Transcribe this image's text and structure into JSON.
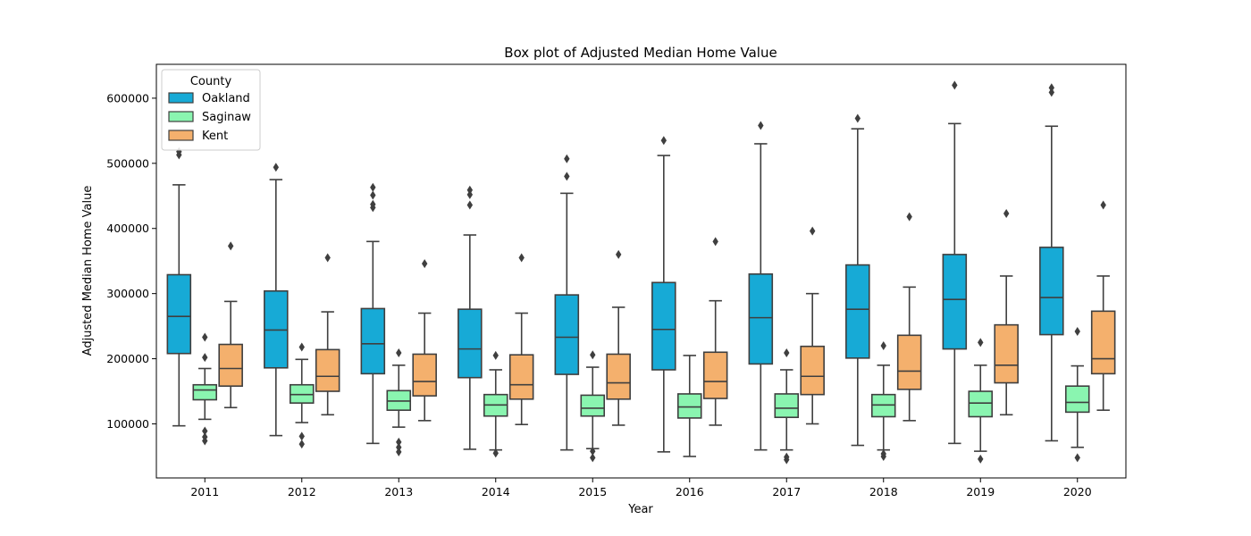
{
  "chart_data": {
    "type": "box",
    "title": "Box plot of Adjusted Median Home Value",
    "xlabel": "Year",
    "ylabel": "Adjusted Median Home Value",
    "ylim": [
      17000,
      652000
    ],
    "yticks": [
      100000,
      200000,
      300000,
      400000,
      500000,
      600000
    ],
    "yticklabels": [
      "100000",
      "200000",
      "300000",
      "400000",
      "500000",
      "600000"
    ],
    "categories": [
      "2011",
      "2012",
      "2013",
      "2014",
      "2015",
      "2016",
      "2017",
      "2018",
      "2019",
      "2020"
    ],
    "legend": {
      "title": "County",
      "position": "top-left"
    },
    "colors": {
      "Oakland": "#17aad6",
      "Saginaw": "#8af5b0",
      "Kent": "#f4b06d",
      "line": "#3f3f3f"
    },
    "series": [
      {
        "name": "Oakland",
        "boxes": [
          {
            "whislo": 97000,
            "q1": 208000,
            "med": 265000,
            "q3": 329000,
            "whishi": 467000,
            "fliers": [
              513000,
              518000
            ]
          },
          {
            "whislo": 82000,
            "q1": 186000,
            "med": 244000,
            "q3": 304000,
            "whishi": 475000,
            "fliers": [
              494000
            ]
          },
          {
            "whislo": 70000,
            "q1": 177000,
            "med": 223000,
            "q3": 277000,
            "whishi": 380000,
            "fliers": [
              432000,
              437000,
              451000,
              463000
            ]
          },
          {
            "whislo": 61000,
            "q1": 171000,
            "med": 215000,
            "q3": 276000,
            "whishi": 390000,
            "fliers": [
              436000,
              452000,
              459000
            ]
          },
          {
            "whislo": 60000,
            "q1": 176000,
            "med": 233000,
            "q3": 298000,
            "whishi": 454000,
            "fliers": [
              480000,
              507000
            ]
          },
          {
            "whislo": 57000,
            "q1": 183000,
            "med": 245000,
            "q3": 317000,
            "whishi": 512000,
            "fliers": [
              535000
            ]
          },
          {
            "whislo": 60000,
            "q1": 192000,
            "med": 263000,
            "q3": 330000,
            "whishi": 530000,
            "fliers": [
              558000
            ]
          },
          {
            "whislo": 67000,
            "q1": 201000,
            "med": 276000,
            "q3": 344000,
            "whishi": 553000,
            "fliers": [
              569000
            ]
          },
          {
            "whislo": 70000,
            "q1": 215000,
            "med": 291000,
            "q3": 360000,
            "whishi": 561000,
            "fliers": [
              620000
            ]
          },
          {
            "whislo": 74000,
            "q1": 237000,
            "med": 294000,
            "q3": 371000,
            "whishi": 557000,
            "fliers": [
              609000,
              616000
            ]
          }
        ]
      },
      {
        "name": "Saginaw",
        "boxes": [
          {
            "whislo": 107000,
            "q1": 137000,
            "med": 152000,
            "q3": 160000,
            "whishi": 185000,
            "fliers": [
              74000,
              80000,
              89000,
              202000,
              233000
            ]
          },
          {
            "whislo": 102000,
            "q1": 132000,
            "med": 145000,
            "q3": 160000,
            "whishi": 199000,
            "fliers": [
              69000,
              81000,
              218000
            ]
          },
          {
            "whislo": 95000,
            "q1": 121000,
            "med": 135000,
            "q3": 151000,
            "whishi": 190000,
            "fliers": [
              57000,
              64000,
              72000,
              209000
            ]
          },
          {
            "whislo": 60000,
            "q1": 112000,
            "med": 129000,
            "q3": 145000,
            "whishi": 183000,
            "fliers": [
              55000,
              205000
            ]
          },
          {
            "whislo": 62000,
            "q1": 112000,
            "med": 124000,
            "q3": 144000,
            "whishi": 187000,
            "fliers": [
              48000,
              58000,
              206000
            ]
          },
          {
            "whislo": 50000,
            "q1": 109000,
            "med": 126000,
            "q3": 146000,
            "whishi": 205000,
            "fliers": []
          },
          {
            "whislo": 60000,
            "q1": 110000,
            "med": 124000,
            "q3": 146000,
            "whishi": 183000,
            "fliers": [
              45000,
              49000,
              209000
            ]
          },
          {
            "whislo": 60000,
            "q1": 111000,
            "med": 129000,
            "q3": 145000,
            "whishi": 190000,
            "fliers": [
              50000,
              54000,
              220000
            ]
          },
          {
            "whislo": 58000,
            "q1": 111000,
            "med": 132000,
            "q3": 150000,
            "whishi": 190000,
            "fliers": [
              46000,
              225000
            ]
          },
          {
            "whislo": 64000,
            "q1": 118000,
            "med": 133000,
            "q3": 158000,
            "whishi": 189000,
            "fliers": [
              48000,
              242000
            ]
          }
        ]
      },
      {
        "name": "Kent",
        "boxes": [
          {
            "whislo": 125000,
            "q1": 158000,
            "med": 185000,
            "q3": 222000,
            "whishi": 288000,
            "fliers": [
              373000
            ]
          },
          {
            "whislo": 114000,
            "q1": 150000,
            "med": 173000,
            "q3": 214000,
            "whishi": 272000,
            "fliers": [
              355000
            ]
          },
          {
            "whislo": 105000,
            "q1": 143000,
            "med": 165000,
            "q3": 207000,
            "whishi": 270000,
            "fliers": [
              346000
            ]
          },
          {
            "whislo": 99000,
            "q1": 138000,
            "med": 160000,
            "q3": 206000,
            "whishi": 270000,
            "fliers": [
              355000
            ]
          },
          {
            "whislo": 98000,
            "q1": 138000,
            "med": 163000,
            "q3": 207000,
            "whishi": 279000,
            "fliers": [
              360000
            ]
          },
          {
            "whislo": 98000,
            "q1": 139000,
            "med": 165000,
            "q3": 210000,
            "whishi": 289000,
            "fliers": [
              380000
            ]
          },
          {
            "whislo": 100000,
            "q1": 145000,
            "med": 173000,
            "q3": 219000,
            "whishi": 300000,
            "fliers": [
              396000
            ]
          },
          {
            "whislo": 105000,
            "q1": 153000,
            "med": 181000,
            "q3": 236000,
            "whishi": 310000,
            "fliers": [
              418000
            ]
          },
          {
            "whislo": 114000,
            "q1": 163000,
            "med": 190000,
            "q3": 252000,
            "whishi": 327000,
            "fliers": [
              423000
            ]
          },
          {
            "whislo": 121000,
            "q1": 177000,
            "med": 200000,
            "q3": 273000,
            "whishi": 327000,
            "fliers": [
              436000
            ]
          }
        ]
      }
    ]
  }
}
